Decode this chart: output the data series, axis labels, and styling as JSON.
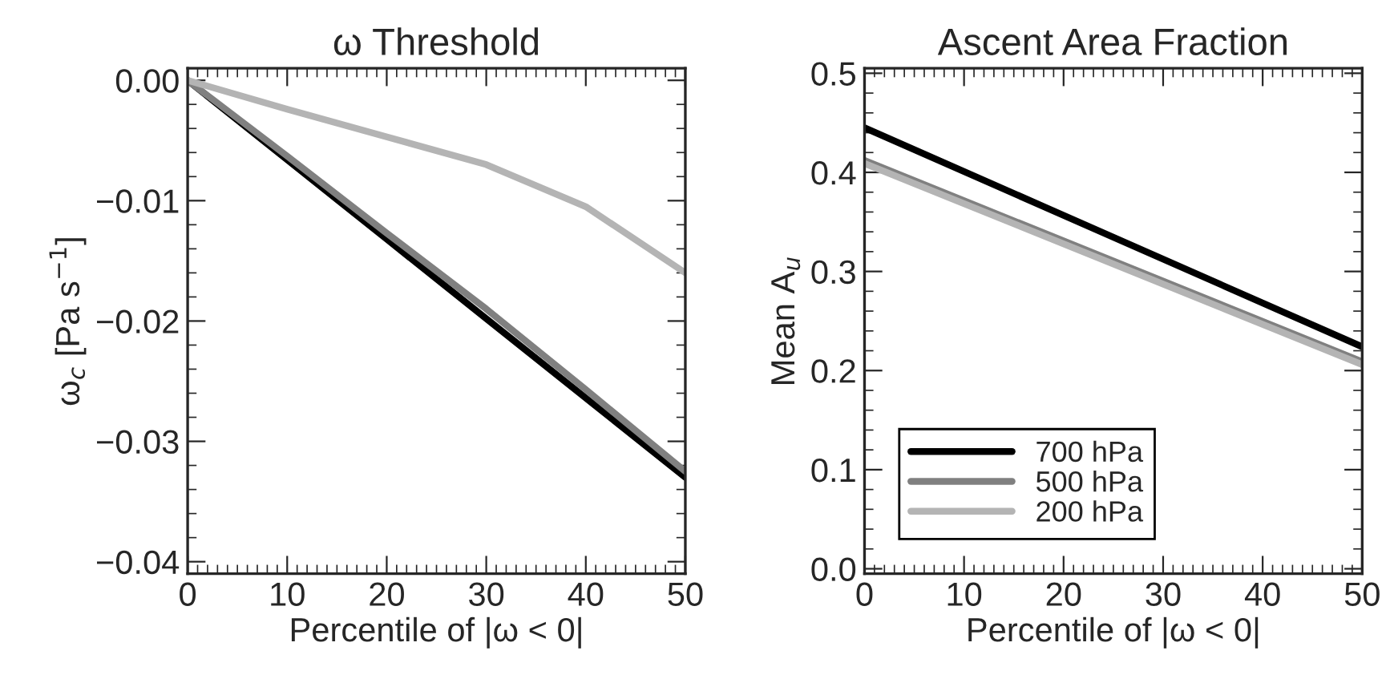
{
  "chart_data": [
    {
      "type": "line",
      "title": "ω Threshold",
      "xlabel": "Percentile of |ω < 0|",
      "ylabel": "ω$_{c}$ [Pa s$^{−1}$]",
      "x": [
        0,
        10,
        20,
        30,
        40,
        50
      ],
      "series": [
        {
          "color": "#000000",
          "values": [
            0,
            -0.0066,
            -0.0132,
            -0.0198,
            -0.0264,
            -0.033
          ]
        },
        {
          "color": "#808080",
          "values": [
            0,
            -0.0063,
            -0.0127,
            -0.019,
            -0.0257,
            -0.0325
          ]
        },
        {
          "color": "#b4b4b4",
          "values": [
            0,
            -0.0024,
            -0.0047,
            -0.007,
            -0.0105,
            -0.016
          ]
        }
      ],
      "xlim": [
        0,
        50
      ],
      "xticks": [
        0,
        10,
        20,
        30,
        40,
        50
      ],
      "ylim": [
        -0.041,
        0.001
      ],
      "yticks": [
        {
          "value": 0,
          "label": "0.00"
        },
        {
          "value": -0.01,
          "label": "−0.01"
        },
        {
          "value": -0.02,
          "label": "−0.02"
        },
        {
          "value": -0.03,
          "label": "−0.03"
        },
        {
          "value": -0.04,
          "label": "−0.04"
        }
      ],
      "grid": false,
      "legend": false,
      "marker": "none",
      "line_style": "solid"
    },
    {
      "type": "line",
      "title": "Ascent Area Fraction",
      "xlabel": "Percentile of |ω < 0|",
      "ylabel": "Mean A$_{u}$",
      "x": [
        0,
        50
      ],
      "series": [
        {
          "name": "700 hPa",
          "color": "#000000",
          "values": [
            0.445,
            0.224
          ]
        },
        {
          "name": "500 hPa",
          "color": "#808080",
          "values": [
            0.412,
            0.209
          ]
        },
        {
          "name": "200 hPa",
          "color": "#b4b4b4",
          "values": [
            0.409,
            0.206
          ]
        }
      ],
      "xlim": [
        0,
        50
      ],
      "xticks": [
        0,
        10,
        20,
        30,
        40,
        50
      ],
      "ylim": [
        -0.005,
        0.505
      ],
      "yticks": [
        {
          "value": 0,
          "label": "0.0"
        },
        {
          "value": 0.1,
          "label": "0.1"
        },
        {
          "value": 0.2,
          "label": "0.2"
        },
        {
          "value": 0.3,
          "label": "0.3"
        },
        {
          "value": 0.4,
          "label": "0.4"
        },
        {
          "value": 0.5,
          "label": "0.5"
        }
      ],
      "grid": false,
      "legend": "bottom left",
      "marker": "none",
      "line_style": "solid"
    }
  ]
}
